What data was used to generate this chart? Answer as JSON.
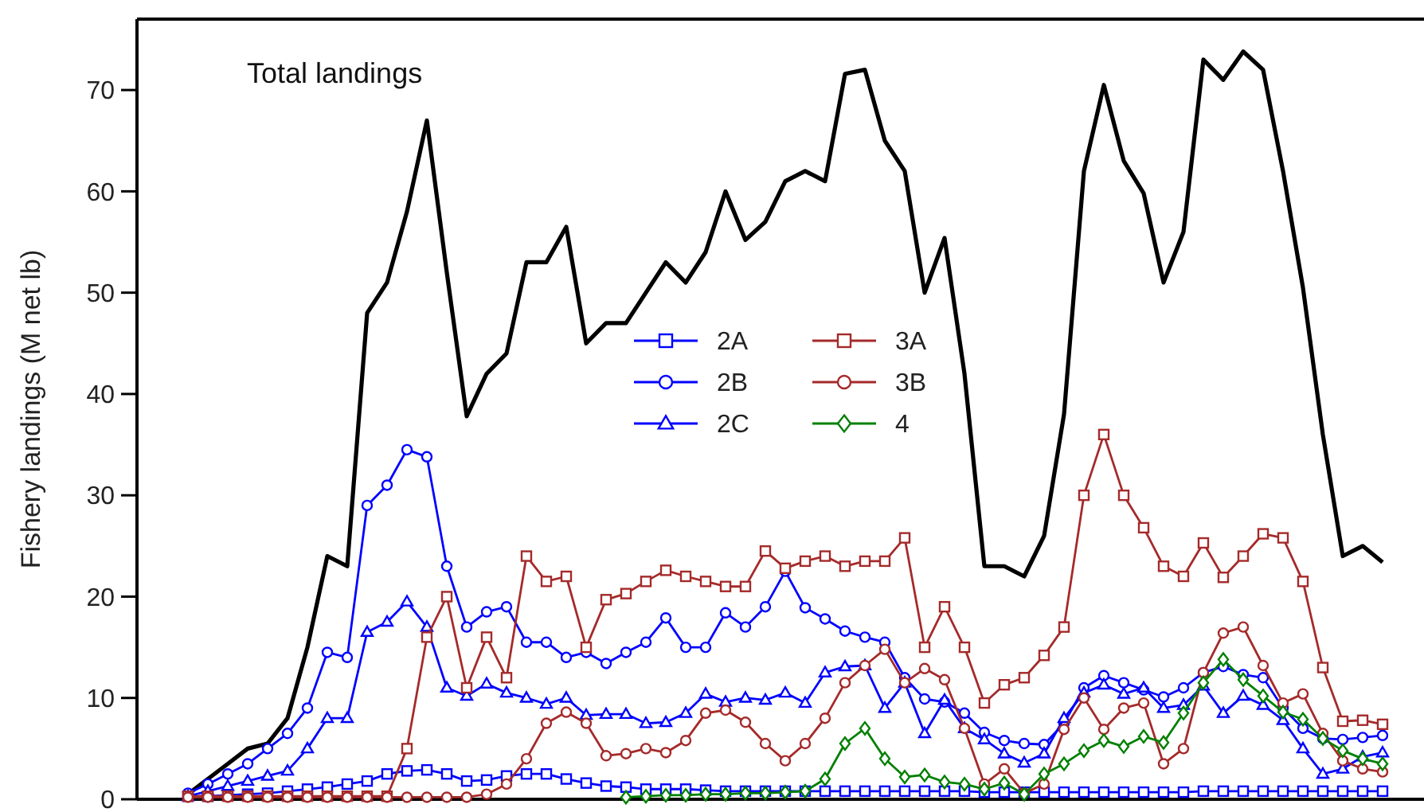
{
  "chart_data": {
    "type": "line",
    "ylabel": "Fishery landings (M net lb)",
    "ylim": [
      0,
      77
    ],
    "yticks": [
      0,
      10,
      20,
      30,
      40,
      50,
      60,
      70
    ],
    "legend": "top",
    "grid": false,
    "categories": [
      null,
      null,
      null,
      null,
      null,
      null,
      null,
      null,
      null,
      null,
      null,
      null,
      null,
      null,
      null,
      null,
      null,
      null,
      null,
      null,
      null,
      null,
      null,
      null,
      null,
      null,
      null,
      null,
      null,
      null,
      null,
      null,
      null,
      null,
      null,
      null,
      null,
      null,
      null,
      null,
      null,
      null,
      null,
      null,
      null,
      null,
      null,
      null,
      null,
      null,
      null,
      null,
      null,
      null,
      null,
      null,
      null,
      null,
      null,
      null,
      null
    ],
    "series": [
      {
        "name": "Total landings",
        "color": "#000000",
        "marker": "none",
        "values": [
          0.5,
          2,
          3.5,
          5,
          5.5,
          8,
          15,
          24,
          23,
          48,
          51,
          58,
          67,
          52,
          37.8,
          42,
          44,
          53,
          53,
          56.5,
          45,
          47,
          47,
          50,
          53,
          51,
          54,
          60,
          55.2,
          57,
          61,
          62,
          61,
          71.6,
          72,
          65,
          62,
          50,
          55.4,
          42,
          23,
          23,
          22,
          26,
          38,
          62,
          70.5,
          63,
          59.8,
          51,
          56,
          73,
          71,
          73.8,
          72,
          62,
          50.5,
          36,
          24,
          25,
          23.4
        ]
      },
      {
        "name": "2A",
        "color": "#0000ff",
        "marker": "square",
        "values": [
          0.3,
          0.3,
          0.4,
          0.5,
          0.6,
          0.8,
          1,
          1.2,
          1.5,
          1.8,
          2.5,
          2.8,
          2.9,
          2.5,
          1.8,
          1.9,
          2.3,
          2.5,
          2.5,
          2,
          1.6,
          1.3,
          1.2,
          1,
          1,
          1,
          0.9,
          0.8,
          0.8,
          0.8,
          0.8,
          0.8,
          0.8,
          0.8,
          0.8,
          0.8,
          0.8,
          0.8,
          0.8,
          0.8,
          0.7,
          0.7,
          0.7,
          0.7,
          0.7,
          0.7,
          0.7,
          0.7,
          0.7,
          0.7,
          0.7,
          0.8,
          0.8,
          0.8,
          0.8,
          0.8,
          0.8,
          0.8,
          0.8,
          0.8,
          0.8
        ]
      },
      {
        "name": "2B",
        "color": "#0000ff",
        "marker": "circle",
        "values": [
          0.6,
          1.5,
          2.5,
          3.5,
          5,
          6.5,
          9,
          14.5,
          14,
          29,
          31,
          34.5,
          33.8,
          23,
          17,
          18.5,
          19,
          15.5,
          15.5,
          14,
          14.5,
          13.4,
          14.5,
          15.5,
          17.9,
          15,
          15,
          18.4,
          17,
          19,
          22.5,
          18.9,
          17.8,
          16.6,
          16,
          15.5,
          12,
          9.9,
          9.6,
          8.5,
          6.6,
          5.8,
          5.5,
          5.4,
          7.5,
          11,
          12.2,
          11.5,
          10.8,
          10.1,
          11,
          12.5,
          13.1,
          12.3,
          12,
          9,
          7,
          6,
          5.9,
          6.1,
          6.3
        ]
      },
      {
        "name": "2C",
        "color": "#0000ff",
        "marker": "triangle",
        "values": [
          0.3,
          0.8,
          1.3,
          1.8,
          2.3,
          2.8,
          5,
          8,
          8,
          16.5,
          17.5,
          19.5,
          17,
          11,
          10.2,
          11.4,
          10.5,
          10,
          9.4,
          10,
          8.3,
          8.4,
          8.4,
          7.5,
          7.6,
          8.5,
          10.4,
          9.6,
          10,
          9.8,
          10.5,
          9.5,
          12.5,
          13.1,
          13.2,
          9,
          11.5,
          6.5,
          9.8,
          7,
          5.9,
          4.5,
          3.6,
          4.5,
          8,
          10.5,
          11.3,
          10.4,
          11,
          9,
          9.3,
          11.2,
          8.5,
          10.2,
          9.3,
          7.8,
          5,
          2.5,
          3,
          4.2,
          4.6
        ]
      },
      {
        "name": "3A",
        "color": "#a52a2a",
        "marker": "square",
        "values": [
          0.3,
          0.3,
          0.3,
          0.3,
          0.3,
          0.3,
          0.3,
          0.3,
          0.3,
          0.3,
          0.3,
          5,
          16,
          20,
          11,
          16,
          12,
          24,
          21.5,
          22,
          15,
          19.7,
          20.3,
          21.5,
          22.6,
          22,
          21.5,
          21,
          21,
          24.5,
          22.8,
          23.5,
          24,
          23,
          23.5,
          23.5,
          25.8,
          15,
          19,
          15,
          9.5,
          11.3,
          12,
          14.2,
          17,
          30,
          36,
          30,
          26.8,
          23,
          22,
          25.3,
          21.9,
          24,
          26.2,
          25.8,
          21.5,
          13,
          7.7,
          7.8,
          7.4
        ]
      },
      {
        "name": "3B",
        "color": "#a52a2a",
        "marker": "circle",
        "values": [
          0.2,
          0.2,
          0.2,
          0.2,
          0.2,
          0.2,
          0.2,
          0.2,
          0.2,
          0.2,
          0.2,
          0.2,
          0.2,
          0.2,
          0.2,
          0.5,
          1.5,
          4,
          7.5,
          8.6,
          7.5,
          4.3,
          4.5,
          5,
          4.6,
          5.8,
          8.5,
          8.8,
          7.6,
          5.5,
          3.8,
          5.5,
          8,
          11.5,
          13.2,
          14.8,
          11.5,
          12.9,
          11.8,
          7,
          1.5,
          3,
          0.6,
          1.5,
          6.9,
          10,
          6.9,
          9,
          9.5,
          3.5,
          5,
          12.5,
          16.4,
          17,
          13.2,
          9.5,
          10.4,
          6.5,
          3.8,
          3,
          2.7
        ]
      },
      {
        "name": "4",
        "color": "#008000",
        "marker": "diamond",
        "values": [
          null,
          null,
          null,
          null,
          null,
          null,
          null,
          null,
          null,
          null,
          null,
          null,
          null,
          null,
          null,
          null,
          null,
          null,
          null,
          null,
          null,
          null,
          0.2,
          0.3,
          0.4,
          0.4,
          0.5,
          0.5,
          0.6,
          0.6,
          0.7,
          0.8,
          2,
          5.5,
          7,
          4,
          2.2,
          2.4,
          1.7,
          1.5,
          1,
          1.6,
          0.5,
          2.5,
          3.5,
          4.8,
          5.8,
          5.2,
          6.2,
          5.6,
          8.5,
          11.5,
          13.8,
          11.8,
          10.2,
          8.6,
          7.9,
          6,
          4.8,
          4,
          3.5
        ]
      }
    ]
  }
}
